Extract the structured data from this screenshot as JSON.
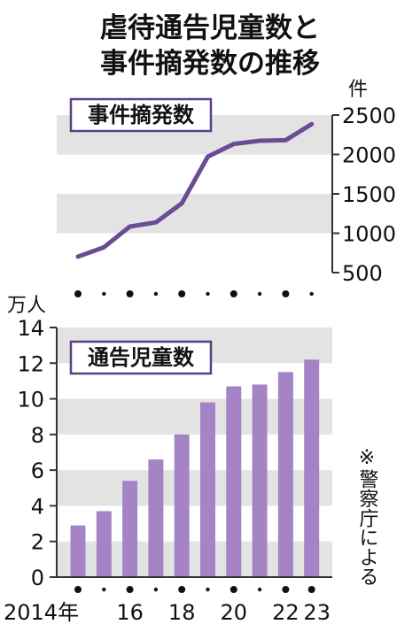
{
  "title_lines": [
    "虐待通告児童数と",
    "事件摘発数の推移"
  ],
  "note": "※警察庁による",
  "colors": {
    "line": "#6a4c93",
    "bar": "#a584c6",
    "band": "#e3e3e3",
    "axis": "#333333",
    "frame": "#5b3f86"
  },
  "chart_data": [
    {
      "type": "line",
      "label": "事件摘発数",
      "unit": "件",
      "x": [
        2014,
        2015,
        2016,
        2017,
        2018,
        2019,
        2020,
        2021,
        2022,
        2023
      ],
      "values": [
        703,
        822,
        1085,
        1138,
        1380,
        1972,
        2133,
        2174,
        2181,
        2385
      ],
      "ylim": [
        500,
        2500
      ],
      "yticks": [
        500,
        1000,
        1500,
        2000,
        2500
      ],
      "grid": "alternating-bands"
    },
    {
      "type": "bar",
      "label": "通告児童数",
      "unit": "万人",
      "x": [
        2014,
        2015,
        2016,
        2017,
        2018,
        2019,
        2020,
        2021,
        2022,
        2023
      ],
      "values": [
        2.9,
        3.7,
        5.4,
        6.6,
        8.0,
        9.8,
        10.7,
        10.8,
        11.5,
        12.2
      ],
      "ylim": [
        0,
        14
      ],
      "yticks": [
        0,
        2,
        4,
        6,
        8,
        10,
        12,
        14
      ],
      "xtick_labels": [
        "2014年",
        "16",
        "18",
        "20",
        "22",
        "23"
      ],
      "grid": "alternating-bands"
    }
  ]
}
